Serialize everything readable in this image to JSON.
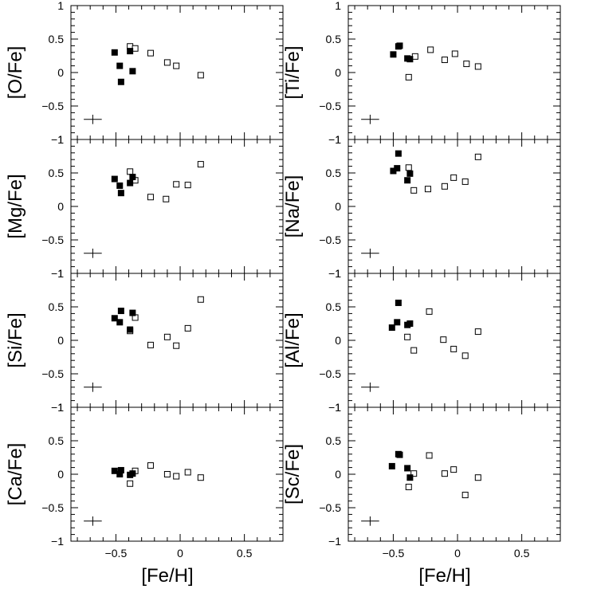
{
  "chart_data": {
    "type": "scatter",
    "xlabel": "[Fe/H]",
    "xlim": [
      -0.85,
      0.8
    ],
    "ylim": [
      -1,
      1
    ],
    "x_ticks": [
      -0.5,
      0,
      0.5
    ],
    "x_tick_labels": [
      "−0.5",
      "0",
      "0.5"
    ],
    "y_ticks": [
      1,
      0.5,
      0,
      -0.5,
      -1
    ],
    "y_tick_labels": [
      "1",
      "0.5",
      "0",
      "−0.5",
      "−1"
    ],
    "marker_colors": {
      "filled": "#000000",
      "open": "#ffffff"
    },
    "error_bar": {
      "x": -0.68,
      "y": -0.7,
      "xerr": 0.07,
      "yerr": 0.07
    },
    "panels": [
      {
        "ylabel": "[O/Fe]",
        "filled": [
          [
            -0.51,
            0.3
          ],
          [
            -0.47,
            0.1
          ],
          [
            -0.46,
            -0.14
          ],
          [
            -0.39,
            0.32
          ],
          [
            -0.37,
            0.02
          ]
        ],
        "open": [
          [
            -0.39,
            0.39
          ],
          [
            -0.35,
            0.36
          ],
          [
            -0.23,
            0.29
          ],
          [
            -0.1,
            0.15
          ],
          [
            -0.03,
            0.1
          ],
          [
            0.16,
            -0.04
          ]
        ]
      },
      {
        "ylabel": "[Ti/Fe]",
        "filled": [
          [
            -0.5,
            0.27
          ],
          [
            -0.46,
            0.39
          ],
          [
            -0.45,
            0.4
          ],
          [
            -0.39,
            0.21
          ],
          [
            -0.37,
            0.2
          ]
        ],
        "open": [
          [
            -0.38,
            -0.07
          ],
          [
            -0.33,
            0.24
          ],
          [
            -0.21,
            0.34
          ],
          [
            -0.1,
            0.19
          ],
          [
            -0.02,
            0.28
          ],
          [
            0.07,
            0.13
          ],
          [
            0.16,
            0.09
          ]
        ]
      },
      {
        "ylabel": "[Mg/Fe]",
        "filled": [
          [
            -0.51,
            0.41
          ],
          [
            -0.47,
            0.31
          ],
          [
            -0.46,
            0.2
          ],
          [
            -0.39,
            0.35
          ],
          [
            -0.37,
            0.44
          ]
        ],
        "open": [
          [
            -0.39,
            0.52
          ],
          [
            -0.35,
            0.39
          ],
          [
            -0.23,
            0.14
          ],
          [
            -0.11,
            0.11
          ],
          [
            -0.03,
            0.33
          ],
          [
            0.06,
            0.32
          ],
          [
            0.16,
            0.63
          ]
        ]
      },
      {
        "ylabel": "[Na/Fe]",
        "filled": [
          [
            -0.5,
            0.53
          ],
          [
            -0.47,
            0.57
          ],
          [
            -0.46,
            0.79
          ],
          [
            -0.39,
            0.39
          ],
          [
            -0.37,
            0.49
          ]
        ],
        "open": [
          [
            -0.38,
            0.58
          ],
          [
            -0.34,
            0.24
          ],
          [
            -0.23,
            0.26
          ],
          [
            -0.1,
            0.3
          ],
          [
            -0.03,
            0.43
          ],
          [
            0.06,
            0.37
          ],
          [
            0.16,
            0.74
          ]
        ]
      },
      {
        "ylabel": "[Si/Fe]",
        "filled": [
          [
            -0.51,
            0.33
          ],
          [
            -0.47,
            0.27
          ],
          [
            -0.46,
            0.44
          ],
          [
            -0.39,
            0.16
          ],
          [
            -0.37,
            0.41
          ]
        ],
        "open": [
          [
            -0.39,
            0.14
          ],
          [
            -0.35,
            0.34
          ],
          [
            -0.23,
            -0.07
          ],
          [
            -0.1,
            0.05
          ],
          [
            -0.03,
            -0.08
          ],
          [
            0.06,
            0.18
          ],
          [
            0.16,
            0.61
          ]
        ]
      },
      {
        "ylabel": "[Al/Fe]",
        "filled": [
          [
            -0.51,
            0.19
          ],
          [
            -0.47,
            0.27
          ],
          [
            -0.46,
            0.56
          ],
          [
            -0.39,
            0.23
          ],
          [
            -0.37,
            0.25
          ]
        ],
        "open": [
          [
            -0.39,
            0.05
          ],
          [
            -0.34,
            -0.15
          ],
          [
            -0.22,
            0.43
          ],
          [
            -0.11,
            0.01
          ],
          [
            -0.03,
            -0.13
          ],
          [
            0.06,
            -0.23
          ],
          [
            0.16,
            0.13
          ]
        ]
      },
      {
        "ylabel": "[Ca/Fe]",
        "filled": [
          [
            -0.51,
            0.05
          ],
          [
            -0.47,
            0.0
          ],
          [
            -0.46,
            0.06
          ],
          [
            -0.39,
            -0.01
          ],
          [
            -0.37,
            0.01
          ]
        ],
        "open": [
          [
            -0.39,
            -0.14
          ],
          [
            -0.35,
            0.05
          ],
          [
            -0.23,
            0.13
          ],
          [
            -0.1,
            0.0
          ],
          [
            -0.03,
            -0.03
          ],
          [
            0.06,
            0.03
          ],
          [
            0.16,
            -0.05
          ]
        ]
      },
      {
        "ylabel": "[Sc/Fe]",
        "filled": [
          [
            -0.51,
            0.12
          ],
          [
            -0.46,
            0.3
          ],
          [
            -0.45,
            0.29
          ],
          [
            -0.39,
            0.09
          ],
          [
            -0.37,
            -0.05
          ]
        ],
        "open": [
          [
            -0.38,
            -0.19
          ],
          [
            -0.34,
            0.01
          ],
          [
            -0.22,
            0.28
          ],
          [
            -0.1,
            0.01
          ],
          [
            -0.03,
            0.07
          ],
          [
            0.06,
            -0.31
          ],
          [
            0.16,
            -0.05
          ]
        ]
      }
    ]
  }
}
